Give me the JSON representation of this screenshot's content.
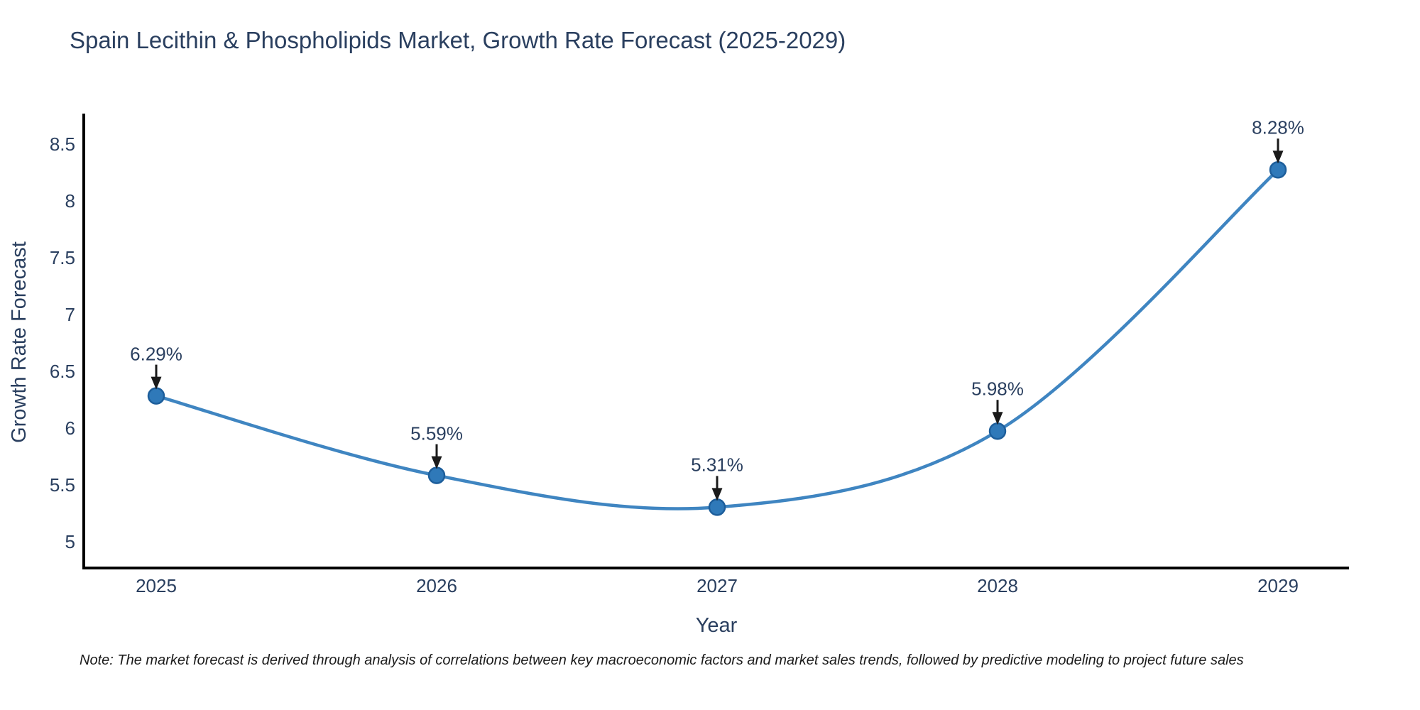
{
  "title": "Spain Lecithin & Phospholipids Market, Growth Rate Forecast (2025-2029)",
  "note": "Note: The market forecast is derived through analysis of correlations between key macroeconomic factors and market sales trends, followed by predictive modeling to project future sales",
  "colors": {
    "background": "#ffffff",
    "line": "#3f85c1",
    "marker_fill": "#2f79b9",
    "marker_edge": "#1d5e9b",
    "axis_line": "#000000",
    "arrow": "#1a1a1a",
    "chart_text": "#2a3f5f",
    "note_text": "#1b1b1b"
  },
  "chart_data": {
    "type": "line",
    "title": "Spain Lecithin & Phospholipids Market, Growth Rate Forecast (2025-2029)",
    "x": [
      2025,
      2026,
      2027,
      2028,
      2029
    ],
    "xtick_labels": [
      "2025",
      "2026",
      "2027",
      "2028",
      "2029"
    ],
    "series": [
      {
        "name": "Growth Rate Forecast",
        "values": [
          6.29,
          5.59,
          5.31,
          5.98,
          8.28
        ]
      }
    ],
    "point_annotations": [
      "6.29%",
      "5.59%",
      "5.31%",
      "5.98%",
      "8.28%"
    ],
    "xlabel": "Year",
    "ylabel": "Growth Rate Forecast",
    "yticks": [
      5,
      5.5,
      6,
      6.5,
      7,
      7.5,
      8,
      8.5
    ],
    "ytick_labels": [
      "5",
      "5.5",
      "6",
      "6.5",
      "7",
      "7.5",
      "8",
      "8.5"
    ],
    "ylim": [
      4.78,
      8.78
    ],
    "xlim": [
      2024.74,
      2029.25
    ],
    "grid": false,
    "legend_position": "none",
    "line_shape": "spline",
    "marker": "circle",
    "annotation_arrows": "down-to-point"
  }
}
